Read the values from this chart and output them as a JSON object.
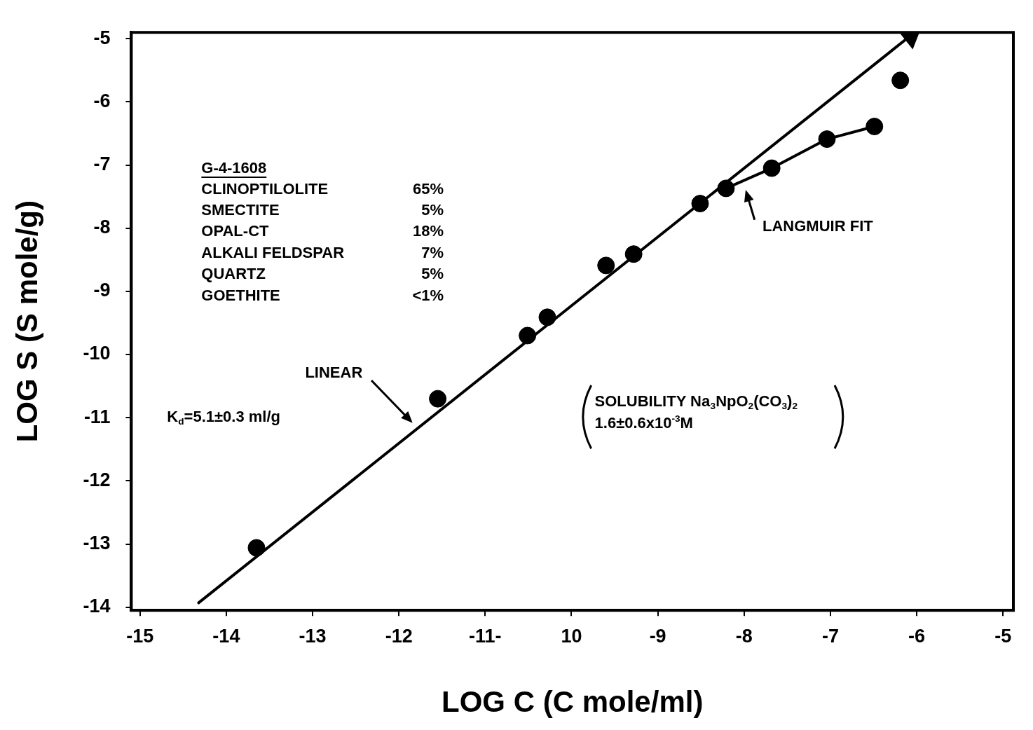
{
  "chart_data": {
    "type": "scatter",
    "xlabel": "LOG C (C mole/ml)",
    "ylabel": "LOG S (S mole/g)",
    "xlim": [
      -15.1,
      -4.88
    ],
    "ylim": [
      -14.05,
      -4.9
    ],
    "xticks": [
      -15,
      -14,
      -13,
      -12,
      {
        "value": -11,
        "label": "-11-"
      },
      {
        "value": -10,
        "label": "10"
      },
      -9,
      -8,
      -7,
      -6,
      -5
    ],
    "yticks": [
      -14,
      -13,
      -12,
      -11,
      -10,
      -9,
      -8,
      -7,
      -6,
      -5
    ],
    "grid": false,
    "legend": false,
    "marker": "circle",
    "series": [
      {
        "color": "#000000",
        "x": [
          -13.65,
          -11.55,
          -10.51,
          -10.28,
          -9.6,
          -9.28,
          -8.51,
          -8.21,
          -7.68,
          -7.04,
          -6.49,
          -6.19
        ],
        "values": [
          -13.06,
          -10.7,
          -9.7,
          -9.41,
          -8.59,
          -8.41,
          -7.61,
          -7.37,
          -7.05,
          -6.59,
          -6.39,
          -5.66
        ]
      },
      {
        "type": "line",
        "color": "#000000",
        "marker": "triangle",
        "line_style": "solid",
        "x": [
          -14.32,
          -6.07
        ],
        "values": [
          -13.93,
          -4.95
        ]
      },
      {
        "type": "line",
        "color": "#000000",
        "marker": "none",
        "line_style": "solid",
        "x": [
          -8.21,
          -7.68,
          -7.04,
          -6.49
        ],
        "values": [
          -7.37,
          -7.05,
          -6.59,
          -6.39
        ]
      }
    ],
    "annotations": [
      "G-4-1608",
      "CLINOPTILOLITE",
      "65%",
      "SMECTITE",
      "5%",
      "OPAL-CT",
      "18%",
      "ALKALI FELDSPAR",
      "7%",
      "QUARTZ",
      "5%",
      "GOETHITE",
      "<1%",
      "K$_{d}$=5.1±0.3 ml/g",
      "SOLUBILITY Na$_{3}$NpO$_{2}$(CO$_{3}$)$_{2}$",
      "1.6±0.6x10$^{-3}$M",
      "LINEAR",
      "LANGMUIR FIT"
    ]
  }
}
